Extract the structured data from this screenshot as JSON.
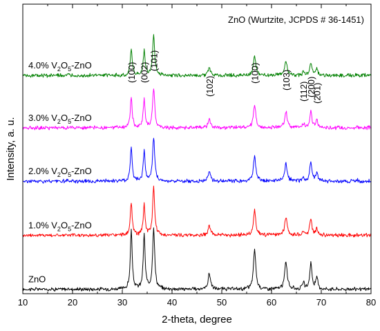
{
  "chart_data": {
    "type": "line",
    "title": "",
    "xlabel": "2-theta, degree",
    "ylabel": "Intensity, a. u.",
    "xlim": [
      10,
      80
    ],
    "ylim": [
      0,
      5.2
    ],
    "y_ticks_labeled": false,
    "x_ticks": [
      10,
      20,
      30,
      40,
      50,
      60,
      70,
      80
    ],
    "annotation": "ZnO (Wurtzite, JCPDS # 36-1451)",
    "peak_labels": [
      {
        "label": "(100)",
        "x": 31.8
      },
      {
        "label": "(002)",
        "x": 34.4
      },
      {
        "label": "(101)",
        "x": 36.3
      },
      {
        "label": "(102)",
        "x": 47.5
      },
      {
        "label": "(100)",
        "x": 56.6
      },
      {
        "label": "(103)",
        "x": 62.9
      },
      {
        "label": "(112)",
        "x": 66.4
      },
      {
        "label": "(200)",
        "x": 67.9
      },
      {
        "label": "(201)",
        "x": 69.1
      }
    ],
    "peak_positions": [
      31.8,
      34.4,
      36.3,
      47.5,
      56.6,
      62.9,
      66.4,
      67.9,
      69.1
    ],
    "series": [
      {
        "name": "ZnO",
        "label_main": "ZnO",
        "label_sub": "",
        "label_tail": "",
        "color": "#000000",
        "baseline": 0.08,
        "peak_heights": [
          1.05,
          0.98,
          1.1,
          0.28,
          0.72,
          0.5,
          0.12,
          0.48,
          0.2
        ]
      },
      {
        "name": "1.0% V2O5-ZnO",
        "label_main": "1.0% V",
        "label_sub": "2",
        "label_mid": "O",
        "label_sub2": "5",
        "label_tail": "-ZnO",
        "color": "#ff0000",
        "baseline": 1.05,
        "peak_heights": [
          0.58,
          0.55,
          0.85,
          0.17,
          0.45,
          0.32,
          0.07,
          0.3,
          0.12
        ]
      },
      {
        "name": "2.0% V2O5-ZnO",
        "label_main": "2.0% V",
        "label_sub": "2",
        "label_mid": "O",
        "label_sub2": "5",
        "label_tail": "-ZnO",
        "color": "#0000ff",
        "baseline": 2.02,
        "peak_heights": [
          0.62,
          0.55,
          0.78,
          0.17,
          0.45,
          0.32,
          0.07,
          0.33,
          0.14
        ]
      },
      {
        "name": "3.0% V2O5-ZnO",
        "label_main": "3.0% V",
        "label_sub": "2",
        "label_mid": "O",
        "label_sub2": "5",
        "label_tail": "-ZnO",
        "color": "#ff00ff",
        "baseline": 2.98,
        "peak_heights": [
          0.55,
          0.5,
          0.72,
          0.15,
          0.42,
          0.3,
          0.07,
          0.3,
          0.13
        ]
      },
      {
        "name": "4.0% V2O5-ZnO",
        "label_main": "4.0% V",
        "label_sub": "2",
        "label_mid": "O",
        "label_sub2": "5",
        "label_tail": "-ZnO",
        "color": "#008000",
        "baseline": 3.92,
        "peak_heights": [
          0.48,
          0.45,
          0.72,
          0.13,
          0.35,
          0.25,
          0.06,
          0.22,
          0.12
        ]
      }
    ]
  }
}
